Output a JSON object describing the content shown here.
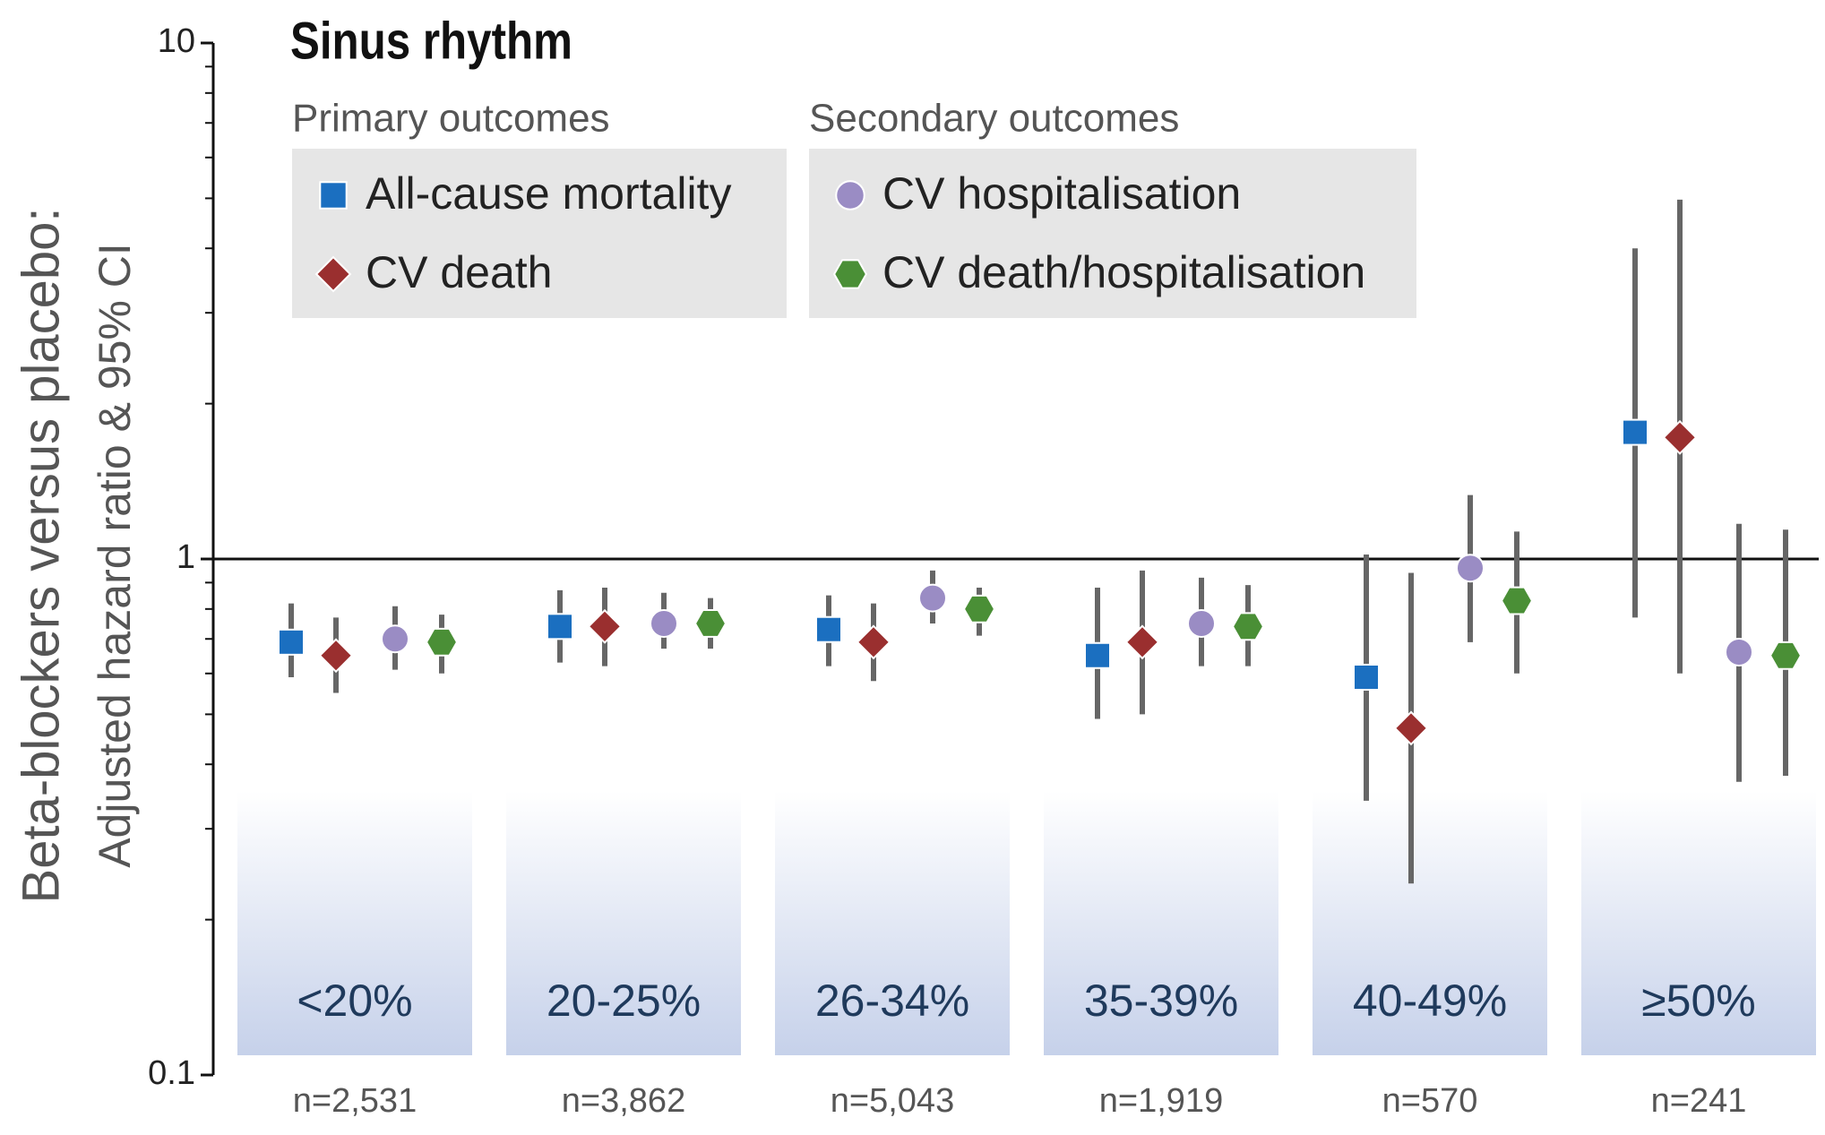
{
  "chart_data": {
    "type": "forest",
    "title": "Sinus rhythm",
    "y_label": [
      "Beta-blockers versus placebo:",
      "Adjusted hazard ratio & 95% CI"
    ],
    "legend_titles": [
      "Primary outcomes",
      "Secondary outcomes"
    ],
    "categories": [
      "<20%",
      "20-25%",
      "26-34%",
      "35-39%",
      "40-49%",
      "≥50%"
    ],
    "n_labels": [
      "n=2,531",
      "n=3,862",
      "n=5,043",
      "n=1,919",
      "n=570",
      "n=241"
    ],
    "y_log": true,
    "ylim": [
      0.1,
      10
    ],
    "yticks": [
      0.1,
      1,
      10
    ],
    "minor_yticks": [
      0.2,
      0.3,
      0.4,
      0.5,
      0.6,
      0.7,
      0.8,
      0.9,
      2,
      3,
      4,
      5,
      6,
      7,
      8,
      9
    ],
    "reference_line": 1,
    "series": [
      {
        "name": "All-cause mortality",
        "color": "#1b6fc0",
        "marker": "square",
        "values": [
          0.69,
          0.74,
          0.73,
          0.65,
          0.59,
          1.76
        ],
        "lower": [
          0.59,
          0.63,
          0.62,
          0.49,
          0.34,
          0.77
        ],
        "upper": [
          0.82,
          0.87,
          0.85,
          0.88,
          1.02,
          4.0
        ]
      },
      {
        "name": "CV death",
        "color": "#9a2f2f",
        "marker": "diamond",
        "values": [
          0.65,
          0.74,
          0.69,
          0.69,
          0.47,
          1.72
        ],
        "lower": [
          0.55,
          0.62,
          0.58,
          0.5,
          0.235,
          0.6
        ],
        "upper": [
          0.77,
          0.88,
          0.82,
          0.95,
          0.94,
          4.97
        ]
      },
      {
        "name": "CV hospitalisation",
        "color": "#9a8cc4",
        "marker": "circle",
        "values": [
          0.7,
          0.75,
          0.84,
          0.75,
          0.96,
          0.66
        ],
        "lower": [
          0.61,
          0.67,
          0.75,
          0.62,
          0.69,
          0.37
        ],
        "upper": [
          0.81,
          0.86,
          0.95,
          0.92,
          1.33,
          1.17
        ]
      },
      {
        "name": "CV death/hospitalisation",
        "color": "#4a8f36",
        "marker": "hexagon",
        "values": [
          0.69,
          0.75,
          0.8,
          0.74,
          0.83,
          0.65
        ],
        "lower": [
          0.6,
          0.67,
          0.71,
          0.62,
          0.6,
          0.38
        ],
        "upper": [
          0.78,
          0.84,
          0.88,
          0.89,
          1.13,
          1.14
        ]
      }
    ]
  }
}
